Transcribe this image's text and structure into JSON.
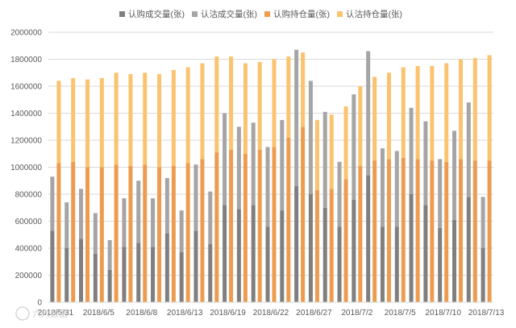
{
  "chart_data": {
    "type": "bar",
    "title": "",
    "xlabel": "",
    "ylabel": "",
    "ylim": [
      0,
      2000000
    ],
    "y_ticks": [
      0,
      200000,
      400000,
      600000,
      800000,
      1000000,
      1200000,
      1400000,
      1600000,
      1800000,
      2000000
    ],
    "grid": true,
    "legend_position": "top",
    "layout": "two stacked columns per date: call stack (认购成交量 over 认沽成交量) and holding stack (认购持仓量 over 认沽持仓量)",
    "x_tick_labels": [
      "2018/5/31",
      "2018/6/5",
      "2018/6/8",
      "2018/6/13",
      "2018/6/19",
      "2018/6/22",
      "2018/6/27",
      "2018/7/2",
      "2018/7/5",
      "2018/7/10",
      "2018/7/13"
    ],
    "x_tick_indices": [
      0,
      3,
      6,
      9,
      12,
      15,
      18,
      21,
      24,
      27,
      30
    ],
    "series": [
      {
        "name": "认购成交量(张)",
        "color": "#7f7f7f",
        "values": [
          530000,
          400000,
          470000,
          360000,
          240000,
          410000,
          440000,
          410000,
          510000,
          370000,
          530000,
          430000,
          720000,
          690000,
          720000,
          560000,
          680000,
          860000,
          800000,
          700000,
          560000,
          760000,
          940000,
          560000,
          560000,
          800000,
          720000,
          550000,
          610000,
          780000,
          400000
        ]
      },
      {
        "name": "认沽成交量(张)",
        "color": "#a5a5a5",
        "values": [
          400000,
          340000,
          370000,
          300000,
          220000,
          360000,
          460000,
          360000,
          410000,
          310000,
          490000,
          390000,
          680000,
          610000,
          610000,
          590000,
          670000,
          1010000,
          840000,
          710000,
          480000,
          780000,
          920000,
          580000,
          560000,
          640000,
          620000,
          510000,
          660000,
          700000,
          380000
        ]
      },
      {
        "name": "认购持仓量(张)",
        "color": "#ed9c4f",
        "values": [
          1030000,
          1040000,
          1000000,
          1000000,
          1020000,
          1010000,
          1020000,
          1000000,
          1010000,
          1030000,
          1060000,
          1110000,
          1130000,
          1100000,
          1130000,
          1150000,
          1220000,
          1300000,
          830000,
          840000,
          910000,
          1010000,
          1050000,
          1060000,
          1070000,
          1060000,
          1050000,
          1040000,
          1060000,
          1050000,
          1050000
        ]
      },
      {
        "name": "认沽持仓量(张)",
        "color": "#fac36f",
        "values": [
          610000,
          620000,
          650000,
          660000,
          680000,
          680000,
          680000,
          690000,
          710000,
          710000,
          710000,
          710000,
          690000,
          670000,
          650000,
          650000,
          600000,
          550000,
          520000,
          550000,
          540000,
          590000,
          620000,
          640000,
          670000,
          690000,
          700000,
          730000,
          740000,
          760000,
          780000
        ]
      }
    ]
  },
  "watermark_text": "六六数据"
}
